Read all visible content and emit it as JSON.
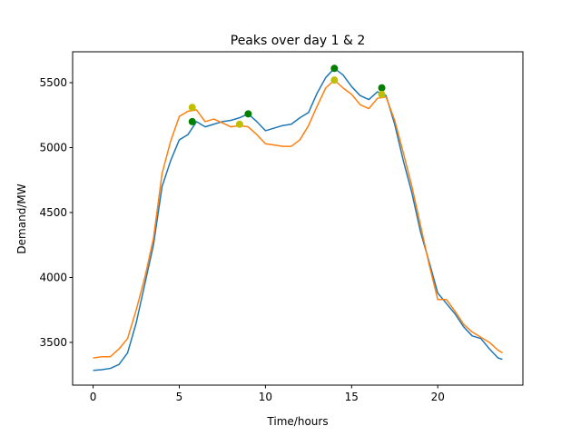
{
  "chart_data": {
    "type": "line",
    "title": "Peaks over day 1 & 2",
    "x_label": "Time/hours",
    "y_label": "Demand/MW",
    "x": [
      0,
      0.5,
      1,
      1.5,
      2,
      2.5,
      3,
      3.5,
      4,
      4.5,
      5,
      5.5,
      6,
      6.5,
      7,
      7.5,
      8,
      8.5,
      9,
      9.5,
      10,
      10.5,
      11,
      11.5,
      12,
      12.5,
      13,
      13.5,
      14,
      14.5,
      15,
      15.5,
      16,
      16.5,
      17,
      17.5,
      18,
      18.5,
      19,
      19.5,
      20,
      20.5,
      21,
      21.5,
      22,
      22.5,
      23,
      23.5,
      23.75
    ],
    "series": [
      {
        "color": "#1f77b4",
        "values": [
          3285,
          3290,
          3300,
          3330,
          3420,
          3650,
          3950,
          4250,
          4700,
          4900,
          5060,
          5100,
          5200,
          5160,
          5180,
          5200,
          5210,
          5230,
          5260,
          5200,
          5130,
          5150,
          5170,
          5180,
          5230,
          5270,
          5420,
          5540,
          5610,
          5560,
          5470,
          5400,
          5370,
          5430,
          5400,
          5180,
          4900,
          4650,
          4350,
          4120,
          3880,
          3800,
          3720,
          3620,
          3550,
          3530,
          3450,
          3380,
          3370
        ]
      },
      {
        "color": "#ff7f0e",
        "values": [
          3380,
          3390,
          3390,
          3450,
          3530,
          3750,
          4000,
          4300,
          4800,
          5050,
          5240,
          5280,
          5290,
          5200,
          5220,
          5190,
          5160,
          5170,
          5160,
          5100,
          5030,
          5020,
          5010,
          5010,
          5060,
          5170,
          5320,
          5460,
          5520,
          5460,
          5410,
          5330,
          5300,
          5380,
          5390,
          5210,
          4960,
          4700,
          4400,
          4100,
          3830,
          3830,
          3740,
          3640,
          3580,
          3540,
          3500,
          3440,
          3420
        ]
      }
    ],
    "peaks": [
      {
        "color": "#008000",
        "x": [
          5.75,
          9,
          14,
          16.75
        ],
        "values": [
          5200,
          5260,
          5610,
          5460
        ]
      },
      {
        "color": "#bfbf00",
        "x": [
          5.75,
          8.5,
          14,
          16.75
        ],
        "values": [
          5310,
          5180,
          5520,
          5410
        ]
      }
    ],
    "xlim": [
      -1.19,
      24.94
    ],
    "ylim": [
      3171,
      5738
    ],
    "xticks": [
      0,
      5,
      10,
      15,
      20
    ],
    "yticks": [
      3500,
      4000,
      4500,
      5000,
      5500
    ],
    "grid": false
  }
}
